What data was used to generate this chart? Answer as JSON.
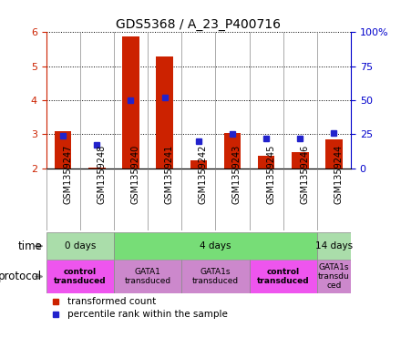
{
  "title": "GDS5368 / A_23_P400716",
  "samples": [
    "GSM1359247",
    "GSM1359248",
    "GSM1359240",
    "GSM1359241",
    "GSM1359242",
    "GSM1359243",
    "GSM1359245",
    "GSM1359246",
    "GSM1359244"
  ],
  "transformed_count": [
    3.08,
    2.03,
    5.87,
    5.3,
    2.22,
    3.05,
    2.37,
    2.47,
    2.85
  ],
  "percentile_rank": [
    24.0,
    17.0,
    50.0,
    52.0,
    20.0,
    25.0,
    22.0,
    22.0,
    26.0
  ],
  "ylim_left": [
    2.0,
    6.0
  ],
  "ylim_right": [
    0,
    100
  ],
  "yticks_left": [
    2,
    3,
    4,
    5,
    6
  ],
  "yticks_right": [
    0,
    25,
    50,
    75,
    100
  ],
  "ytick_labels_right": [
    "0",
    "25",
    "50",
    "75",
    "100%"
  ],
  "bar_color": "#cc2200",
  "dot_color": "#2222cc",
  "background_color": "#ffffff",
  "plot_bg_color": "#ffffff",
  "sample_bg_color": "#cccccc",
  "time_groups": [
    {
      "label": "0 days",
      "start": 0,
      "end": 2,
      "color": "#aaddaa"
    },
    {
      "label": "4 days",
      "start": 2,
      "end": 8,
      "color": "#77dd77"
    },
    {
      "label": "14 days",
      "start": 8,
      "end": 9,
      "color": "#aaddaa"
    }
  ],
  "protocol_groups": [
    {
      "label": "control\ntransduced",
      "start": 0,
      "end": 2,
      "color": "#ee55ee",
      "bold": true
    },
    {
      "label": "GATA1\ntransduced",
      "start": 2,
      "end": 4,
      "color": "#cc88cc",
      "bold": false
    },
    {
      "label": "GATA1s\ntransduced",
      "start": 4,
      "end": 6,
      "color": "#cc88cc",
      "bold": false
    },
    {
      "label": "control\ntransduced",
      "start": 6,
      "end": 8,
      "color": "#ee55ee",
      "bold": true
    },
    {
      "label": "GATA1s\ntransdu\nced",
      "start": 8,
      "end": 9,
      "color": "#cc88cc",
      "bold": false
    }
  ],
  "tick_color_left": "#cc2200",
  "tick_color_right": "#0000cc",
  "bar_width": 0.5,
  "baseline": 2.0
}
